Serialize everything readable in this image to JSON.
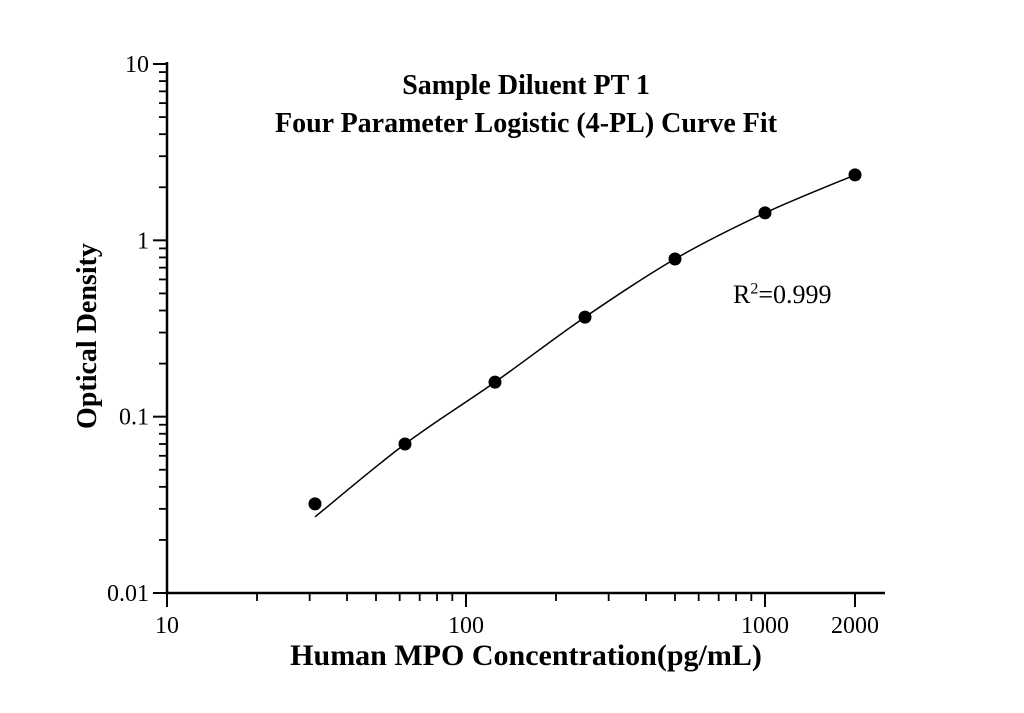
{
  "page": {
    "background": "#ffffff",
    "ink_color": "#000000"
  },
  "chart_data": {
    "type": "scatter",
    "title": "Sample Diluent PT 1",
    "subtitle": "Four Parameter Logistic (4-PL) Curve Fit",
    "xlabel": "Human MPO Concentration(pg/mL)",
    "ylabel": "Optical Density",
    "annotation": {
      "base": "R",
      "sup": "2",
      "rest": "=0.999"
    },
    "x_scale": "log",
    "y_scale": "log",
    "xlim": [
      10,
      2500
    ],
    "ylim": [
      0.01,
      10
    ],
    "grid": false,
    "legend": false,
    "x_ticks": [
      {
        "value": 10,
        "label": "10"
      },
      {
        "value": 100,
        "label": "100"
      },
      {
        "value": 1000,
        "label": "1000"
      },
      {
        "value": 2000,
        "label": "2000"
      }
    ],
    "x_minor_ticks": [
      20,
      30,
      40,
      50,
      60,
      70,
      80,
      90,
      200,
      300,
      400,
      500,
      600,
      700,
      800,
      900
    ],
    "y_ticks": [
      {
        "value": 10,
        "label": "10"
      },
      {
        "value": 1,
        "label": "1"
      },
      {
        "value": 0.1,
        "label": "0.1"
      },
      {
        "value": 0.01,
        "label": "0.01"
      }
    ],
    "y_minor_ticks": [
      0.02,
      0.03,
      0.04,
      0.05,
      0.06,
      0.07,
      0.08,
      0.09,
      0.2,
      0.3,
      0.4,
      0.5,
      0.6,
      0.7,
      0.8,
      0.9,
      2,
      3,
      4,
      5,
      6,
      7,
      8,
      9
    ],
    "series": [
      {
        "name": "standard-points",
        "x": [
          31.25,
          62.5,
          125,
          250,
          500,
          1000,
          2000
        ],
        "y": [
          0.032,
          0.07,
          0.157,
          0.367,
          0.784,
          1.43,
          2.35
        ]
      }
    ],
    "fit_curve": {
      "name": "4pl-fit",
      "x": [
        31.25,
        62.5,
        125,
        250,
        500,
        1000,
        2000
      ],
      "y": [
        0.027,
        0.07,
        0.157,
        0.367,
        0.784,
        1.43,
        2.35
      ]
    }
  }
}
